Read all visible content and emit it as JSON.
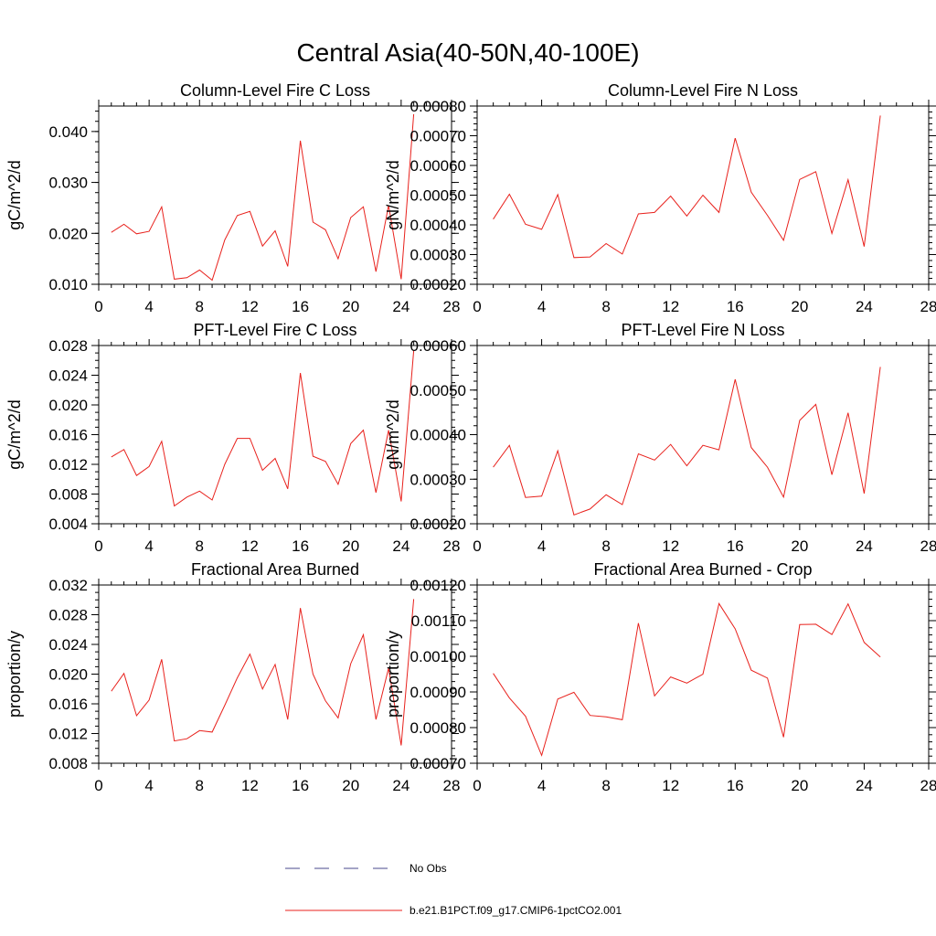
{
  "figure": {
    "title": "Central Asia(40-50N,40-100E)",
    "legend": {
      "placement": "bottom-center",
      "entries": [
        {
          "label": "No Obs",
          "style": "dashed",
          "color": "#4a4a8c"
        },
        {
          "label": "b.e21.B1PCT.f09_g17.CMIP6-1pctCO2.001",
          "style": "solid",
          "color": "#e8211c"
        }
      ]
    }
  },
  "chart_data": [
    {
      "type": "line",
      "title": "Column-Level Fire C Loss",
      "xlabel": "",
      "ylabel": "gC/m^2/d",
      "xlim": [
        0,
        28
      ],
      "ylim": [
        0.01,
        0.045
      ],
      "xticks": [
        "0",
        "4",
        "8",
        "12",
        "16",
        "20",
        "24",
        "28"
      ],
      "yticks": [
        0.01,
        0.02,
        0.03,
        0.04
      ],
      "ytick_labels": [
        "0.010",
        "0.020",
        "0.030",
        "0.040"
      ],
      "yminor_step": 0.002,
      "color": "#e8211c",
      "x": [
        1,
        2,
        3,
        4,
        5,
        6,
        7,
        8,
        9,
        10,
        11,
        12,
        13,
        14,
        15,
        16,
        17,
        18,
        19,
        20,
        21,
        22,
        23,
        24,
        25
      ],
      "values": [
        0.0202,
        0.0218,
        0.0199,
        0.0204,
        0.0252,
        0.011,
        0.0113,
        0.0128,
        0.0108,
        0.0187,
        0.0235,
        0.0243,
        0.0175,
        0.0205,
        0.0135,
        0.0382,
        0.0222,
        0.0207,
        0.015,
        0.0231,
        0.0252,
        0.0125,
        0.0255,
        0.011,
        0.0434
      ]
    },
    {
      "type": "line",
      "title": "Column-Level Fire N Loss",
      "xlabel": "",
      "ylabel": "gN/m^2/d",
      "xlim": [
        0,
        28
      ],
      "ylim": [
        0.0002,
        0.0008
      ],
      "xticks": [
        "0",
        "4",
        "8",
        "12",
        "16",
        "20",
        "24",
        "28"
      ],
      "yticks": [
        0.0002,
        0.0003,
        0.0004,
        0.0005,
        0.0006,
        0.0007,
        0.0008
      ],
      "ytick_labels": [
        "0.00020",
        "0.00030",
        "0.00040",
        "0.00050",
        "0.00060",
        "0.00070",
        "0.00080"
      ],
      "yminor_step": 2e-05,
      "color": "#e8211c",
      "x": [
        1,
        2,
        3,
        4,
        5,
        6,
        7,
        8,
        9,
        10,
        11,
        12,
        13,
        14,
        15,
        16,
        17,
        18,
        19,
        20,
        21,
        22,
        23,
        24,
        25
      ],
      "values": [
        0.000419,
        0.000503,
        0.000402,
        0.000385,
        0.000502,
        0.00029,
        0.000292,
        0.000337,
        0.000302,
        0.000437,
        0.000442,
        0.000497,
        0.00043,
        0.0005,
        0.000442,
        0.000692,
        0.00051,
        0.000432,
        0.000348,
        0.000553,
        0.000579,
        0.000371,
        0.000552,
        0.000327,
        0.000768
      ]
    },
    {
      "type": "line",
      "title": "PFT-Level Fire C Loss",
      "xlabel": "",
      "ylabel": "gC/m^2/d",
      "xlim": [
        0,
        28
      ],
      "ylim": [
        0.004,
        0.028
      ],
      "xticks": [
        "0",
        "4",
        "8",
        "12",
        "16",
        "20",
        "24",
        "28"
      ],
      "yticks": [
        0.004,
        0.008,
        0.012,
        0.016,
        0.02,
        0.024,
        0.028
      ],
      "ytick_labels": [
        "0.004",
        "0.008",
        "0.012",
        "0.016",
        "0.020",
        "0.024",
        "0.028"
      ],
      "yminor_step": 0.001,
      "color": "#e8211c",
      "x": [
        1,
        2,
        3,
        4,
        5,
        6,
        7,
        8,
        9,
        10,
        11,
        12,
        13,
        14,
        15,
        16,
        17,
        18,
        19,
        20,
        21,
        22,
        23,
        24,
        25
      ],
      "values": [
        0.013,
        0.014,
        0.0105,
        0.0117,
        0.0151,
        0.0064,
        0.0076,
        0.0084,
        0.0072,
        0.012,
        0.0155,
        0.0155,
        0.0112,
        0.0128,
        0.0087,
        0.0243,
        0.0131,
        0.0124,
        0.0093,
        0.0148,
        0.0166,
        0.0082,
        0.0166,
        0.007,
        0.0273
      ]
    },
    {
      "type": "line",
      "title": "PFT-Level Fire N Loss",
      "xlabel": "",
      "ylabel": "gN/m^2/d",
      "xlim": [
        0,
        28
      ],
      "ylim": [
        0.0002,
        0.0006
      ],
      "xticks": [
        "0",
        "4",
        "8",
        "12",
        "16",
        "20",
        "24",
        "28"
      ],
      "yticks": [
        0.0002,
        0.0003,
        0.0004,
        0.0005,
        0.0006
      ],
      "ytick_labels": [
        "0.00020",
        "0.00030",
        "0.00040",
        "0.00050",
        "0.00060"
      ],
      "yminor_step": 2e-05,
      "color": "#e8211c",
      "x": [
        1,
        2,
        3,
        4,
        5,
        6,
        7,
        8,
        9,
        10,
        11,
        12,
        13,
        14,
        15,
        16,
        17,
        18,
        19,
        20,
        21,
        22,
        23,
        24,
        25
      ],
      "values": [
        0.000327,
        0.000376,
        0.000259,
        0.000262,
        0.000364,
        0.00022,
        0.000233,
        0.000265,
        0.000243,
        0.000357,
        0.000343,
        0.000378,
        0.00033,
        0.000376,
        0.000366,
        0.000524,
        0.000371,
        0.000327,
        0.00026,
        0.000432,
        0.000468,
        0.00031,
        0.000449,
        0.000268,
        0.000552
      ]
    },
    {
      "type": "line",
      "title": "Fractional Area Burned",
      "xlabel": "",
      "ylabel": "proportion/y",
      "xlim": [
        0,
        28
      ],
      "ylim": [
        0.008,
        0.032
      ],
      "xticks": [
        "0",
        "4",
        "8",
        "12",
        "16",
        "20",
        "24",
        "28"
      ],
      "yticks": [
        0.008,
        0.012,
        0.016,
        0.02,
        0.024,
        0.028,
        0.032
      ],
      "ytick_labels": [
        "0.008",
        "0.012",
        "0.016",
        "0.020",
        "0.024",
        "0.028",
        "0.032"
      ],
      "yminor_step": 0.001,
      "color": "#e8211c",
      "x": [
        1,
        2,
        3,
        4,
        5,
        6,
        7,
        8,
        9,
        10,
        11,
        12,
        13,
        14,
        15,
        16,
        17,
        18,
        19,
        20,
        21,
        22,
        23,
        24,
        25
      ],
      "values": [
        0.0177,
        0.0201,
        0.0144,
        0.0165,
        0.022,
        0.011,
        0.0113,
        0.0124,
        0.0122,
        0.0158,
        0.0195,
        0.0227,
        0.018,
        0.0213,
        0.0139,
        0.0289,
        0.02,
        0.0164,
        0.0141,
        0.0214,
        0.0253,
        0.0139,
        0.0208,
        0.0104,
        0.0301
      ]
    },
    {
      "type": "line",
      "title": "Fractional Area Burned - Crop",
      "xlabel": "",
      "ylabel": "proportion/y",
      "xlim": [
        0,
        28
      ],
      "ylim": [
        0.0007,
        0.0012
      ],
      "xticks": [
        "0",
        "4",
        "8",
        "12",
        "16",
        "20",
        "24",
        "28"
      ],
      "yticks": [
        0.0007,
        0.0008,
        0.0009,
        0.001,
        0.0011,
        0.0012
      ],
      "ytick_labels": [
        "0.00070",
        "0.00080",
        "0.00090",
        "0.00100",
        "0.00110",
        "0.00120"
      ],
      "yminor_step": 2e-05,
      "color": "#e8211c",
      "x": [
        1,
        2,
        3,
        4,
        5,
        6,
        7,
        8,
        9,
        10,
        11,
        12,
        13,
        14,
        15,
        16,
        17,
        18,
        19,
        20,
        21,
        22,
        23,
        24,
        25
      ],
      "values": [
        0.000952,
        0.000883,
        0.000832,
        0.000722,
        0.00088,
        0.000899,
        0.000834,
        0.00083,
        0.000822,
        0.001093,
        0.000889,
        0.000942,
        0.000925,
        0.00095,
        0.001148,
        0.001077,
        0.000961,
        0.000939,
        0.000773,
        0.001089,
        0.00109,
        0.001061,
        0.001147,
        0.001039,
        0.000998
      ]
    }
  ]
}
